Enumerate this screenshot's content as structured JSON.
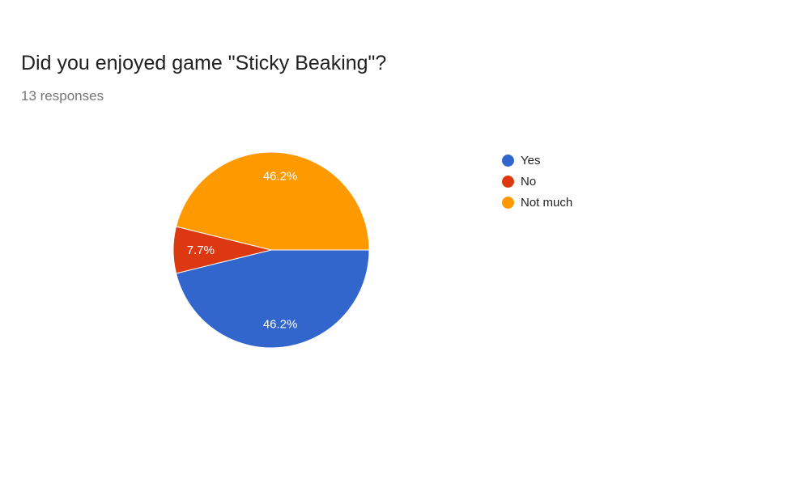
{
  "title": "Did you enjoyed game \"Sticky Beaking\"?",
  "subtitle": "13 responses",
  "chart_data": {
    "type": "pie",
    "categories": [
      "Yes",
      "No",
      "Not much"
    ],
    "values": [
      6,
      1,
      6
    ],
    "percent_labels": [
      "46.2%",
      "7.7%",
      "46.2%"
    ],
    "colors": [
      "#3366CC",
      "#DC3912",
      "#FF9900"
    ],
    "start_angle_deg": 90,
    "direction": "clockwise",
    "legend_position": "right"
  }
}
